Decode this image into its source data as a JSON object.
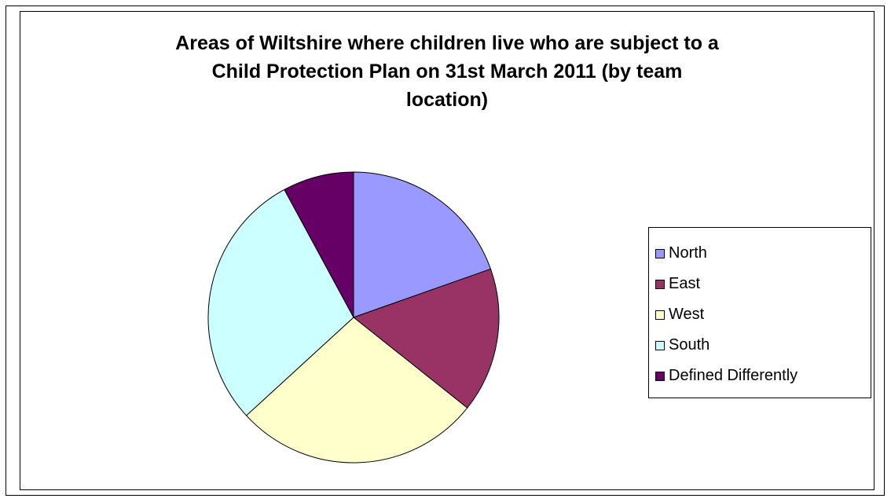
{
  "chart_data": {
    "type": "pie",
    "title_lines": [
      "Areas of Wiltshire where children live who are subject to a",
      "Child Protection Plan on 31st March 2011 (by team",
      "location)"
    ],
    "start_angle_deg": 0,
    "direction": "clockwise",
    "legend_position": "right",
    "slices": [
      {
        "name": "North",
        "value": 19.6,
        "color": "#9999ff"
      },
      {
        "name": "East",
        "value": 16.1,
        "color": "#993366"
      },
      {
        "name": "West",
        "value": 27.5,
        "color": "#ffffcc"
      },
      {
        "name": "South",
        "value": 28.9,
        "color": "#ccffff"
      },
      {
        "name": "Defined Differently",
        "value": 7.9,
        "color": "#660066"
      }
    ]
  }
}
